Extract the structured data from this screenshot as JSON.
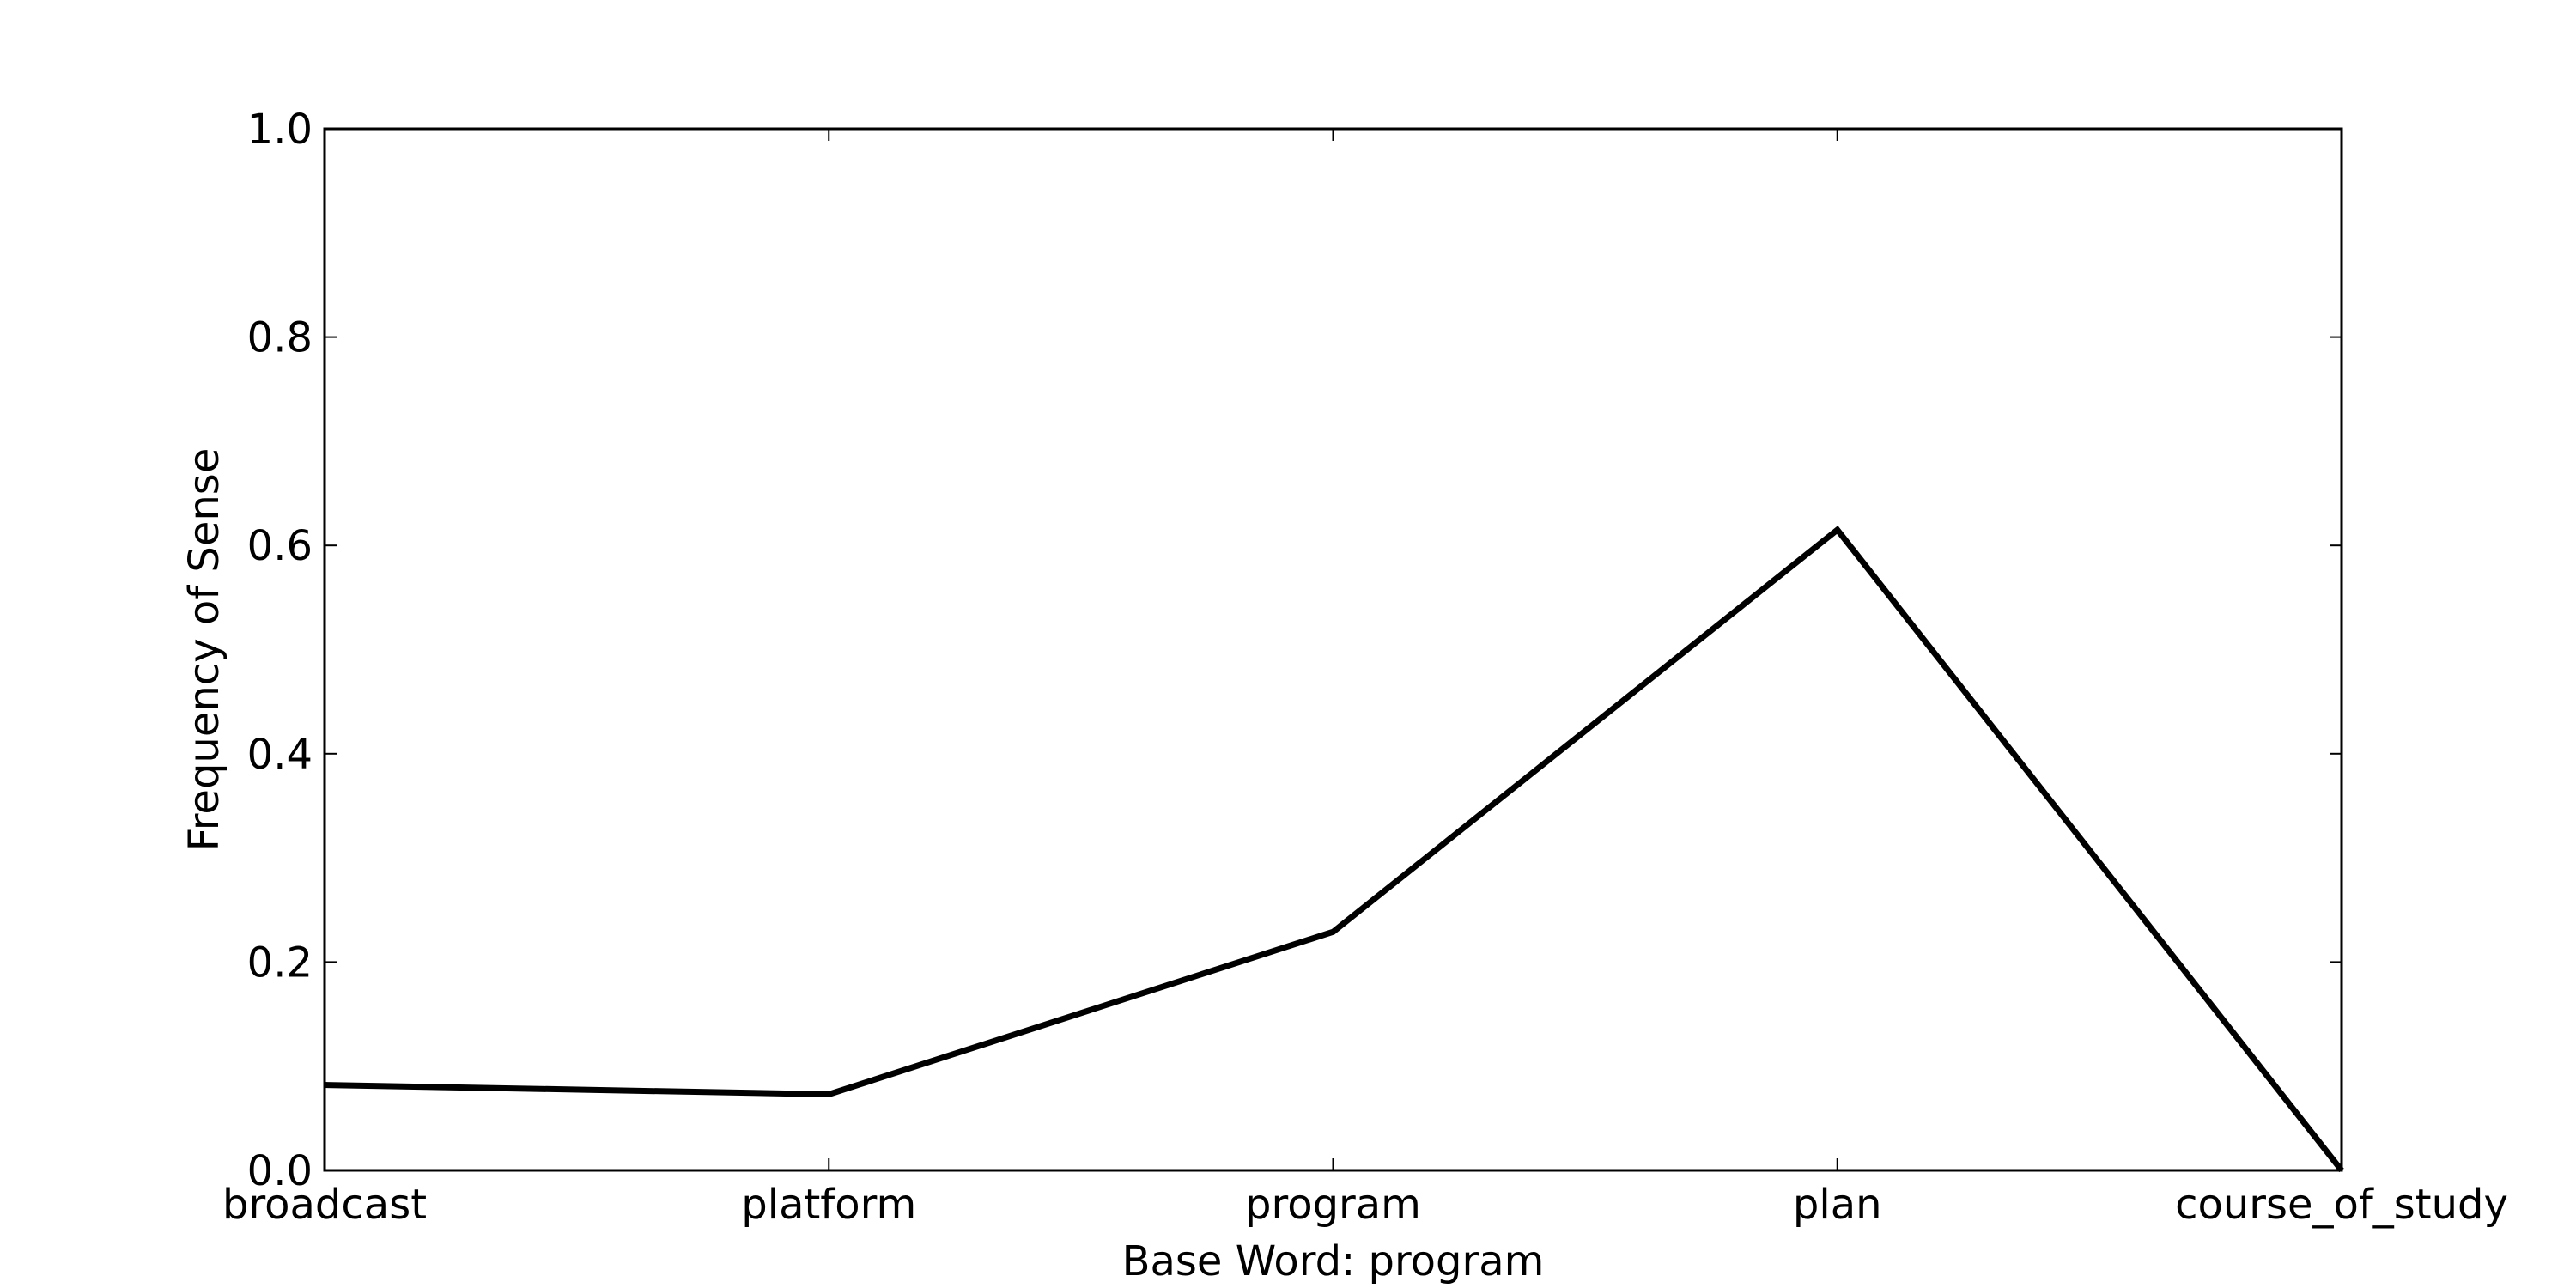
{
  "chart_data": {
    "type": "line",
    "title": "",
    "xlabel": "Base Word: program",
    "ylabel": "Frequency of Sense",
    "categories": [
      "broadcast",
      "platform",
      "program",
      "plan",
      "course_of_study"
    ],
    "series": [
      {
        "values": [
          0.082,
          0.073,
          0.229,
          0.615,
          0.0
        ]
      }
    ],
    "ylim": [
      0.0,
      1.0
    ],
    "yticks": [
      "0.0",
      "0.2",
      "0.4",
      "0.6",
      "0.8",
      "1.0"
    ],
    "grid": false,
    "legend": "none",
    "colors": {
      "line": "#000000",
      "axes": "#000000",
      "background": "#ffffff"
    }
  }
}
